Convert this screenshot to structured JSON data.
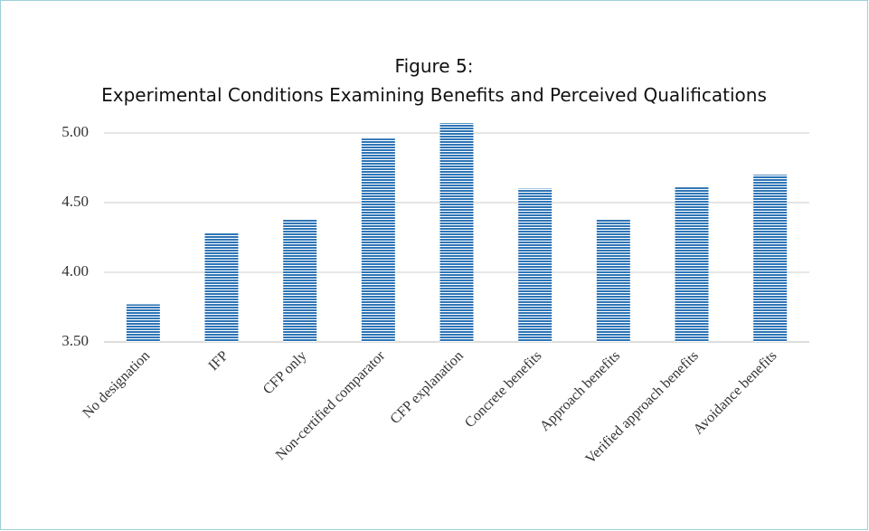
{
  "chart_data": {
    "type": "bar",
    "title": "Figure 5:",
    "subtitle": "Experimental Conditions Examining Benefits and Perceived Qualifications",
    "categories": [
      "No designation",
      "IFP",
      "CFP only",
      "Non-certified comparator",
      "CFP explanation",
      "Concrete benefits",
      "Approach benefits",
      "Verified approach benefits",
      "Avoidance benefits"
    ],
    "values": [
      3.77,
      4.28,
      4.38,
      4.96,
      5.07,
      4.6,
      4.38,
      4.61,
      4.7
    ],
    "color": "#2e75b6",
    "ylim": [
      3.5,
      5.1
    ],
    "yticks": [
      {
        "value": 3.5,
        "label": "3.50"
      },
      {
        "value": 4,
        "label": "4.00"
      },
      {
        "value": 4.5,
        "label": "4.50"
      },
      {
        "value": 5,
        "label": "5.00"
      }
    ],
    "grid": true
  }
}
